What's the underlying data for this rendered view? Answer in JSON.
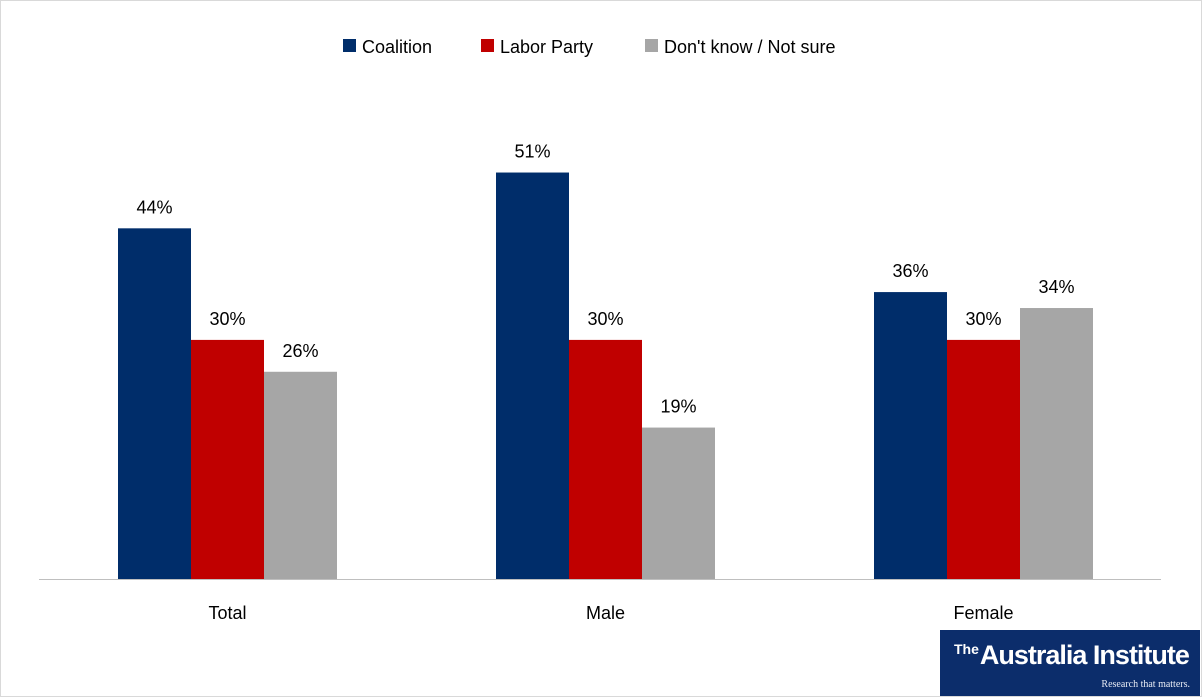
{
  "chart_data": {
    "type": "bar",
    "categories": [
      "Total",
      "Male",
      "Female"
    ],
    "series": [
      {
        "name": "Coalition",
        "color": "#002d6a",
        "values": [
          44,
          51,
          36
        ],
        "labels": [
          "44%",
          "51%",
          "36%"
        ]
      },
      {
        "name": "Labor Party",
        "color": "#c00000",
        "values": [
          30,
          30,
          30
        ],
        "labels": [
          "30%",
          "30%",
          "30%"
        ]
      },
      {
        "name": "Don't know / Not sure",
        "color": "#a6a6a6",
        "values": [
          26,
          19,
          34
        ],
        "labels": [
          "26%",
          "19%",
          "34%"
        ]
      }
    ],
    "ylim": [
      0,
      100
    ],
    "legend": "top-center",
    "grid": false
  },
  "branding": {
    "logo_the": "The",
    "logo_name": "Australia Institute",
    "logo_tagline": "Research that matters.",
    "logo_color": "#0c2d6b"
  }
}
